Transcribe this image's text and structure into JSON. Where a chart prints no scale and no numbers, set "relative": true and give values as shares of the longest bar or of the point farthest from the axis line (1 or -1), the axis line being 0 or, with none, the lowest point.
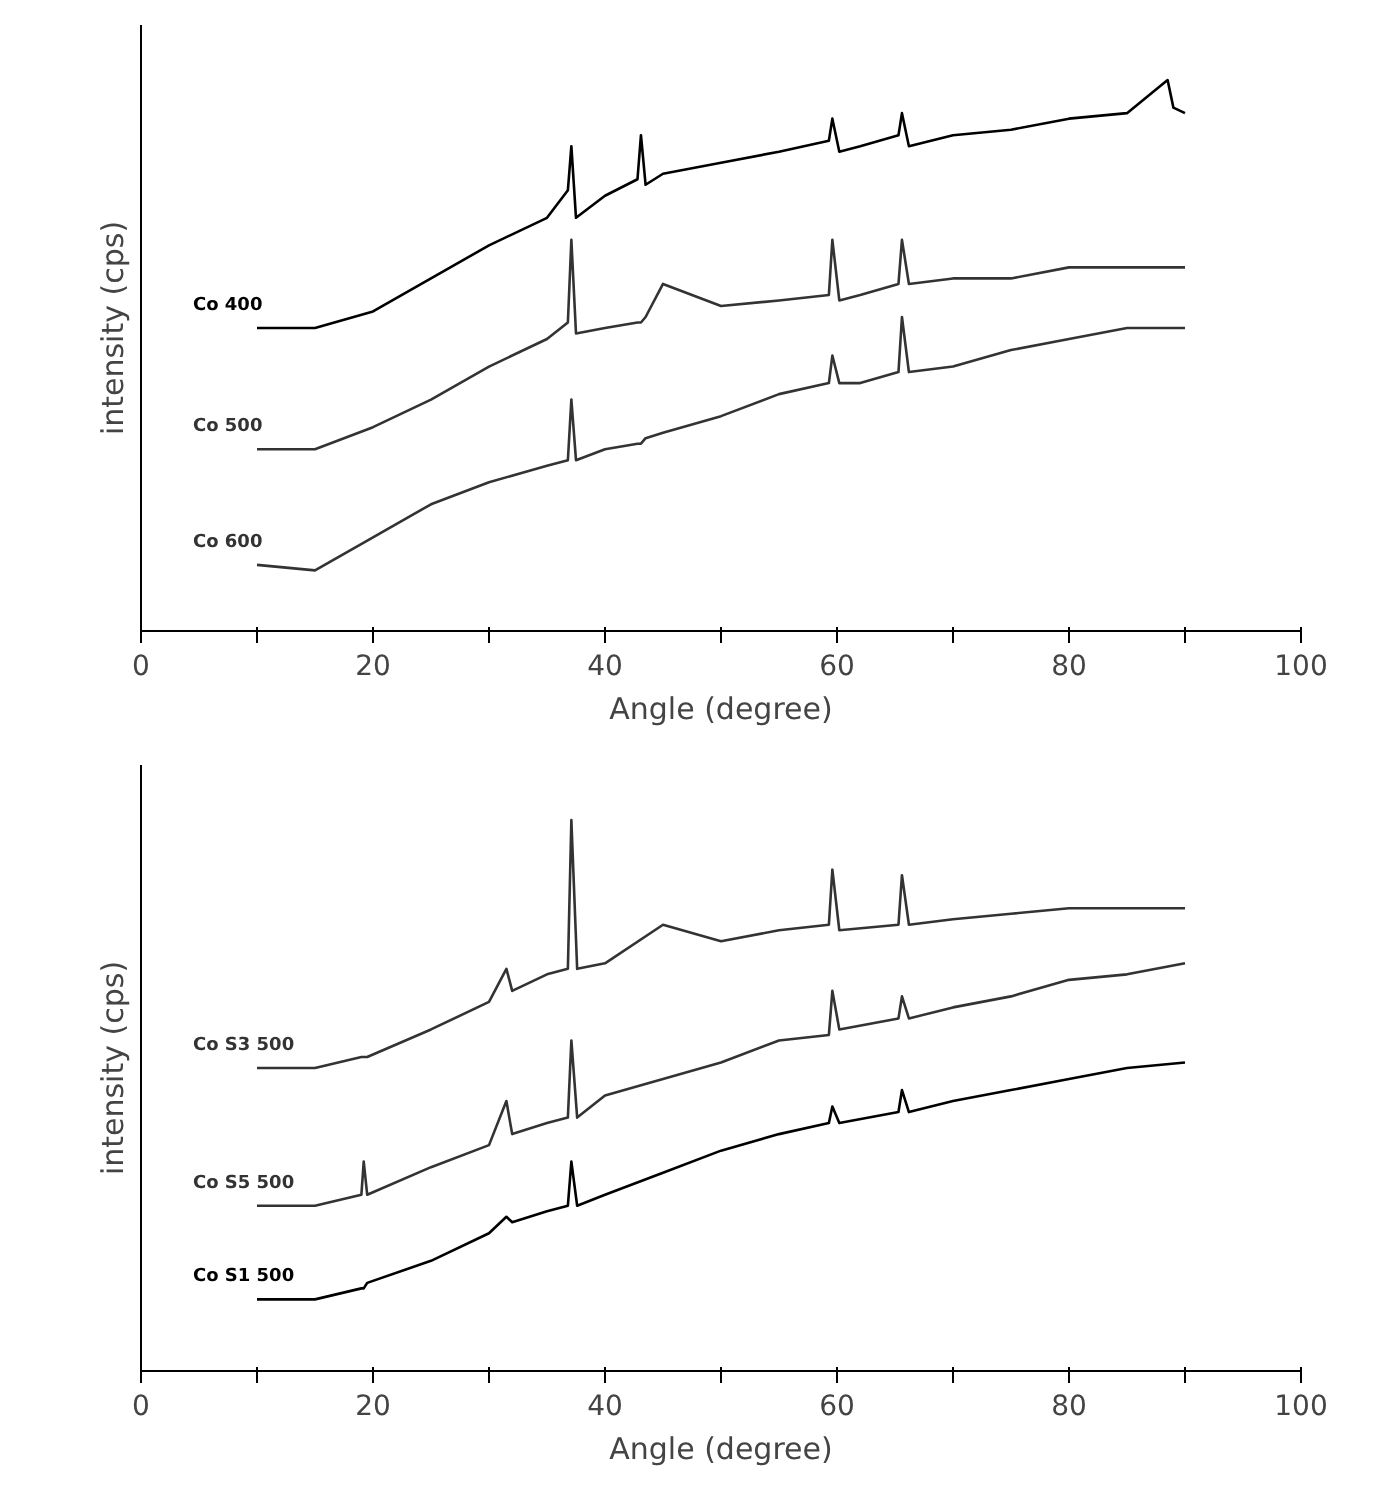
{
  "chart_data": [
    {
      "type": "line",
      "relative": true,
      "xlabel": "Angle (degree)",
      "ylabel": "intensity (cps)",
      "xlim": [
        0,
        100
      ],
      "xticks": [
        0,
        {
          "value": 10,
          "label": null
        },
        20,
        {
          "value": 30,
          "label": null
        },
        40,
        {
          "value": 50,
          "label": null
        },
        60,
        {
          "value": 70,
          "label": null
        },
        80,
        {
          "value": 90,
          "label": null
        },
        100
      ],
      "tick_labels": "x",
      "x": [
        10,
        15,
        20,
        25,
        30,
        35,
        36.8,
        37.1,
        37.5,
        40,
        42.8,
        43.1,
        43.5,
        45,
        50,
        55,
        59.3,
        59.6,
        60.2,
        62,
        65.3,
        65.6,
        66.2,
        70,
        75,
        80,
        85,
        88.5,
        89,
        90
      ],
      "series": [
        {
          "name": "Co 400",
          "color": "#000000",
          "values": [
            0.55,
            0.55,
            0.58,
            0.64,
            0.7,
            0.75,
            0.8,
            0.88,
            0.75,
            0.79,
            0.82,
            0.9,
            0.81,
            0.83,
            0.85,
            0.87,
            0.89,
            0.93,
            0.87,
            0.88,
            0.9,
            0.94,
            0.88,
            0.9,
            0.91,
            0.93,
            0.94,
            1.0,
            0.95,
            0.94
          ]
        },
        {
          "name": "Co 500",
          "color": "#333333",
          "values": [
            0.33,
            0.33,
            0.37,
            0.42,
            0.48,
            0.53,
            0.56,
            0.71,
            0.54,
            0.55,
            0.56,
            0.56,
            0.57,
            0.63,
            0.59,
            0.6,
            0.61,
            0.71,
            0.6,
            0.61,
            0.63,
            0.71,
            0.63,
            0.64,
            0.64,
            0.66,
            0.66,
            0.66,
            0.66,
            0.66
          ]
        },
        {
          "name": "Co 600",
          "color": "#333333",
          "values": [
            0.12,
            0.11,
            0.17,
            0.23,
            0.27,
            0.3,
            0.31,
            0.42,
            0.31,
            0.33,
            0.34,
            0.34,
            0.35,
            0.36,
            0.39,
            0.43,
            0.45,
            0.5,
            0.45,
            0.45,
            0.47,
            0.57,
            0.47,
            0.48,
            0.51,
            0.53,
            0.55,
            0.55,
            0.55,
            0.55
          ]
        }
      ]
    },
    {
      "type": "line",
      "relative": true,
      "xlabel": "Angle (degree)",
      "ylabel": "intensity (cps)",
      "xlim": [
        0,
        100
      ],
      "xticks": [
        0,
        {
          "value": 10,
          "label": null
        },
        20,
        {
          "value": 30,
          "label": null
        },
        40,
        {
          "value": 50,
          "label": null
        },
        60,
        {
          "value": 70,
          "label": null
        },
        80,
        {
          "value": 90,
          "label": null
        },
        100
      ],
      "tick_labels": "x",
      "x": [
        10,
        15,
        19,
        19.2,
        19.5,
        25,
        30,
        31.5,
        32,
        35,
        36.8,
        37.1,
        37.6,
        40,
        45,
        50,
        55,
        59.3,
        59.6,
        60.2,
        65.3,
        65.6,
        66.2,
        70,
        75,
        80,
        85,
        90
      ],
      "series": [
        {
          "name": "Co S3 500",
          "color": "#333333",
          "values": [
            0.55,
            0.55,
            0.57,
            0.57,
            0.57,
            0.62,
            0.67,
            0.73,
            0.69,
            0.72,
            0.73,
            1.0,
            0.73,
            0.74,
            0.81,
            0.78,
            0.8,
            0.81,
            0.91,
            0.8,
            0.81,
            0.9,
            0.81,
            0.82,
            0.83,
            0.84,
            0.84,
            0.84
          ]
        },
        {
          "name": "Co S5 500",
          "color": "#333333",
          "values": [
            0.3,
            0.3,
            0.32,
            0.38,
            0.32,
            0.37,
            0.41,
            0.49,
            0.43,
            0.45,
            0.46,
            0.6,
            0.46,
            0.5,
            0.53,
            0.56,
            0.6,
            0.61,
            0.69,
            0.62,
            0.64,
            0.68,
            0.64,
            0.66,
            0.68,
            0.71,
            0.72,
            0.74
          ]
        },
        {
          "name": "Co S1 500",
          "color": "#000000",
          "values": [
            0.13,
            0.13,
            0.15,
            0.15,
            0.16,
            0.2,
            0.25,
            0.28,
            0.27,
            0.29,
            0.3,
            0.38,
            0.3,
            0.32,
            0.36,
            0.4,
            0.43,
            0.45,
            0.48,
            0.45,
            0.47,
            0.51,
            0.47,
            0.49,
            0.51,
            0.53,
            0.55,
            0.56
          ]
        }
      ]
    }
  ]
}
